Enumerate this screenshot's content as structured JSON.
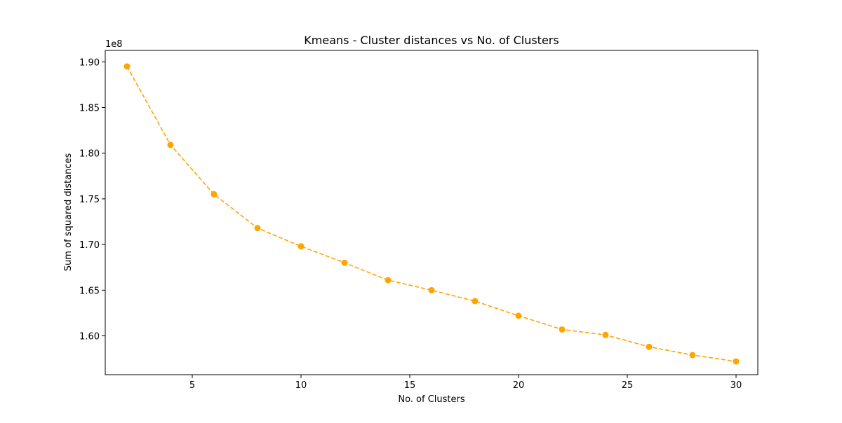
{
  "chart_data": {
    "type": "line",
    "title": "Kmeans - Cluster distances vs No. of Clusters",
    "xlabel": "No. of Clusters",
    "ylabel": "Sum of squared distances",
    "y_offset_label": "1e8",
    "y_scale": 100000000,
    "xlim": [
      1.0,
      31.0
    ],
    "ylim": [
      1.5575,
      1.9125
    ],
    "x_ticks": [
      5,
      10,
      15,
      20,
      25,
      30
    ],
    "x_tick_labels": [
      "5",
      "10",
      "15",
      "20",
      "25",
      "30"
    ],
    "y_ticks": [
      1.6,
      1.65,
      1.7,
      1.75,
      1.8,
      1.85,
      1.9
    ],
    "y_tick_labels": [
      "1.60",
      "1.65",
      "1.70",
      "1.75",
      "1.80",
      "1.85",
      "1.90"
    ],
    "grid": false,
    "series": [
      {
        "color": "#ffa500",
        "line_style": "dashed",
        "marker": "circle",
        "x": [
          2,
          4,
          6,
          8,
          10,
          12,
          14,
          16,
          18,
          20,
          22,
          24,
          26,
          28,
          30
        ],
        "y": [
          1.895,
          1.809,
          1.755,
          1.718,
          1.698,
          1.68,
          1.661,
          1.65,
          1.638,
          1.622,
          1.607,
          1.601,
          1.588,
          1.579,
          1.572
        ]
      }
    ]
  }
}
